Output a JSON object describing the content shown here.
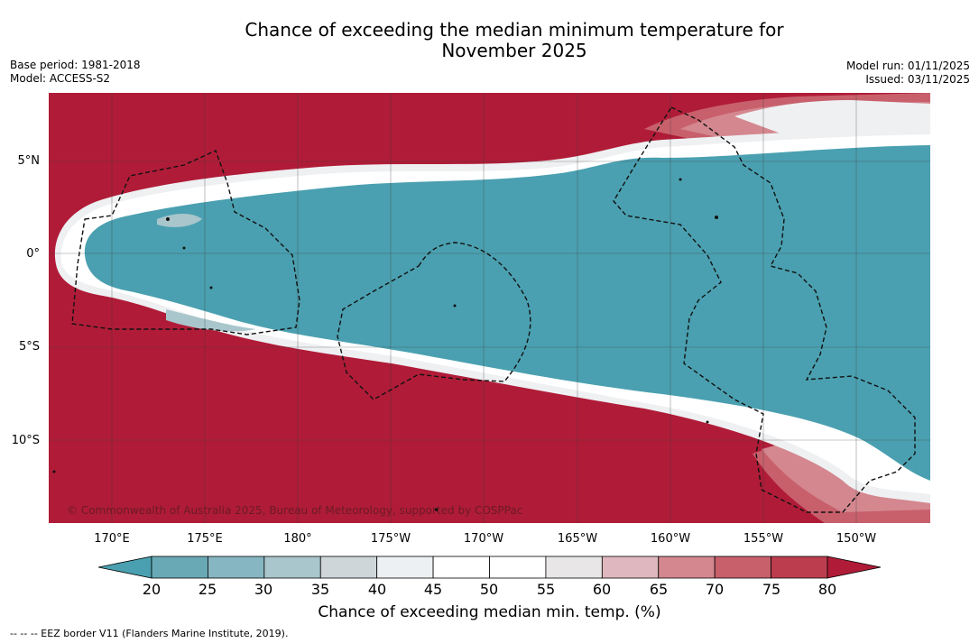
{
  "title_line1": "Chance of exceeding the median minimum temperature for",
  "title_line2": "November 2025",
  "base_period": "Base period: 1981-2018",
  "model": "Model: ACCESS-S2",
  "model_run": "Model run: 01/11/2025",
  "issued": "Issued: 03/11/2025",
  "copyright": "© Commonwealth of Australia 2025, Bureau of Meteorology, supported by COSPPac",
  "lat_labels": [
    "5°N",
    "0°",
    "5°S",
    "10°S"
  ],
  "lon_labels": [
    "170°E",
    "175°E",
    "180°",
    "175°W",
    "170°W",
    "165°W",
    "160°W",
    "155°W",
    "150°W"
  ],
  "colorbar": {
    "ticks": [
      "20",
      "25",
      "30",
      "35",
      "40",
      "45",
      "50",
      "55",
      "60",
      "65",
      "70",
      "75",
      "80"
    ],
    "colors": [
      "#69a9b5",
      "#86b6c2",
      "#a9c6cc",
      "#cfd6d9",
      "#ecf0f2",
      "#ffffff",
      "#ffffff",
      "#e9e6e8",
      "#deb8be",
      "#d4878f",
      "#c8606c",
      "#bc3e4e"
    ],
    "under_color": "#4aa0b0",
    "over_color": "#b01c38",
    "label": "Chance of exceeding median min. temp. (%)"
  },
  "footer": "--  --  -- EEZ border V11 (Flanders Marine Institute, 2019)."
}
